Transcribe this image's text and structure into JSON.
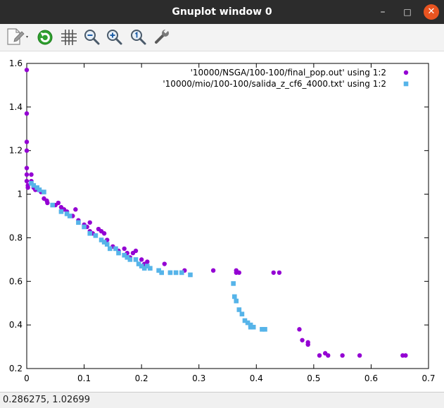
{
  "window": {
    "title": "Gnuplot window 0",
    "controls": {
      "minimize": "–",
      "maximize": "□",
      "close": "✕"
    }
  },
  "toolbar": {
    "items": [
      "copy-to-clipboard-icon",
      "replot-icon",
      "grid-icon",
      "zoom-previous-icon",
      "zoom-next-icon",
      "unzoom-icon",
      "settings-wrench-icon"
    ]
  },
  "status": {
    "coordinates": "0.286275,  1.02699"
  },
  "colors": {
    "series1": "#9400d3",
    "series2": "#56b4e9",
    "close_button": "#e95420"
  },
  "chart_data": {
    "type": "scatter",
    "title": "",
    "xlabel": "",
    "ylabel": "",
    "xlim": [
      0,
      0.7
    ],
    "ylim": [
      0.2,
      1.6
    ],
    "xticks": [
      "0",
      "0.1",
      "0.2",
      "0.3",
      "0.4",
      "0.5",
      "0.6",
      "0.7"
    ],
    "yticks": [
      "0.2",
      "0.4",
      "0.6",
      "0.8",
      "1",
      "1.2",
      "1.4",
      "1.6"
    ],
    "grid": false,
    "legend": "top-right",
    "series": [
      {
        "name": "'10000/NSGA/100-100/final_pop.out' using 1:2",
        "marker": "circle",
        "color": "#9400d3",
        "points": [
          [
            0.0,
            1.57
          ],
          [
            0.0,
            1.37
          ],
          [
            0.0,
            1.24
          ],
          [
            0.0,
            1.2
          ],
          [
            0.0,
            1.12
          ],
          [
            0.0,
            1.09
          ],
          [
            0.0,
            1.06
          ],
          [
            0.002,
            1.04
          ],
          [
            0.002,
            1.03
          ],
          [
            0.008,
            1.09
          ],
          [
            0.008,
            1.06
          ],
          [
            0.012,
            1.03
          ],
          [
            0.015,
            1.02
          ],
          [
            0.02,
            1.02
          ],
          [
            0.025,
            1.01
          ],
          [
            0.03,
            0.98
          ],
          [
            0.035,
            0.97
          ],
          [
            0.036,
            0.96
          ],
          [
            0.05,
            0.95
          ],
          [
            0.055,
            0.96
          ],
          [
            0.06,
            0.94
          ],
          [
            0.065,
            0.93
          ],
          [
            0.07,
            0.92
          ],
          [
            0.08,
            0.9
          ],
          [
            0.085,
            0.93
          ],
          [
            0.09,
            0.88
          ],
          [
            0.1,
            0.86
          ],
          [
            0.105,
            0.85
          ],
          [
            0.11,
            0.87
          ],
          [
            0.11,
            0.83
          ],
          [
            0.115,
            0.82
          ],
          [
            0.12,
            0.81
          ],
          [
            0.125,
            0.84
          ],
          [
            0.13,
            0.83
          ],
          [
            0.135,
            0.82
          ],
          [
            0.14,
            0.79
          ],
          [
            0.15,
            0.76
          ],
          [
            0.16,
            0.74
          ],
          [
            0.17,
            0.75
          ],
          [
            0.175,
            0.73
          ],
          [
            0.18,
            0.71
          ],
          [
            0.185,
            0.73
          ],
          [
            0.19,
            0.74
          ],
          [
            0.2,
            0.7
          ],
          [
            0.205,
            0.68
          ],
          [
            0.21,
            0.69
          ],
          [
            0.24,
            0.68
          ],
          [
            0.25,
            0.64
          ],
          [
            0.275,
            0.65
          ],
          [
            0.325,
            0.65
          ],
          [
            0.365,
            0.64
          ],
          [
            0.365,
            0.65
          ],
          [
            0.37,
            0.64
          ],
          [
            0.43,
            0.64
          ],
          [
            0.44,
            0.64
          ],
          [
            0.475,
            0.38
          ],
          [
            0.48,
            0.33
          ],
          [
            0.49,
            0.31
          ],
          [
            0.49,
            0.32
          ],
          [
            0.51,
            0.26
          ],
          [
            0.52,
            0.27
          ],
          [
            0.525,
            0.26
          ],
          [
            0.55,
            0.26
          ],
          [
            0.58,
            0.26
          ],
          [
            0.655,
            0.26
          ],
          [
            0.66,
            0.26
          ]
        ]
      },
      {
        "name": "'10000/mio/100-100/salida_z_cf6_4000.txt' using 1:2",
        "marker": "square",
        "color": "#56b4e9",
        "points": [
          [
            0.008,
            1.05
          ],
          [
            0.012,
            1.04
          ],
          [
            0.018,
            1.03
          ],
          [
            0.022,
            1.02
          ],
          [
            0.03,
            1.01
          ],
          [
            0.045,
            0.95
          ],
          [
            0.06,
            0.92
          ],
          [
            0.07,
            0.91
          ],
          [
            0.075,
            0.9
          ],
          [
            0.09,
            0.87
          ],
          [
            0.1,
            0.85
          ],
          [
            0.11,
            0.82
          ],
          [
            0.12,
            0.81
          ],
          [
            0.13,
            0.79
          ],
          [
            0.135,
            0.78
          ],
          [
            0.14,
            0.77
          ],
          [
            0.145,
            0.75
          ],
          [
            0.155,
            0.75
          ],
          [
            0.16,
            0.73
          ],
          [
            0.17,
            0.72
          ],
          [
            0.175,
            0.71
          ],
          [
            0.18,
            0.7
          ],
          [
            0.19,
            0.7
          ],
          [
            0.195,
            0.68
          ],
          [
            0.2,
            0.67
          ],
          [
            0.205,
            0.66
          ],
          [
            0.21,
            0.67
          ],
          [
            0.215,
            0.66
          ],
          [
            0.23,
            0.65
          ],
          [
            0.235,
            0.64
          ],
          [
            0.25,
            0.64
          ],
          [
            0.26,
            0.64
          ],
          [
            0.27,
            0.64
          ],
          [
            0.285,
            0.63
          ],
          [
            0.36,
            0.59
          ],
          [
            0.362,
            0.53
          ],
          [
            0.365,
            0.51
          ],
          [
            0.37,
            0.47
          ],
          [
            0.375,
            0.45
          ],
          [
            0.38,
            0.42
          ],
          [
            0.385,
            0.41
          ],
          [
            0.39,
            0.4
          ],
          [
            0.39,
            0.39
          ],
          [
            0.395,
            0.39
          ],
          [
            0.41,
            0.38
          ],
          [
            0.415,
            0.38
          ]
        ]
      }
    ]
  }
}
